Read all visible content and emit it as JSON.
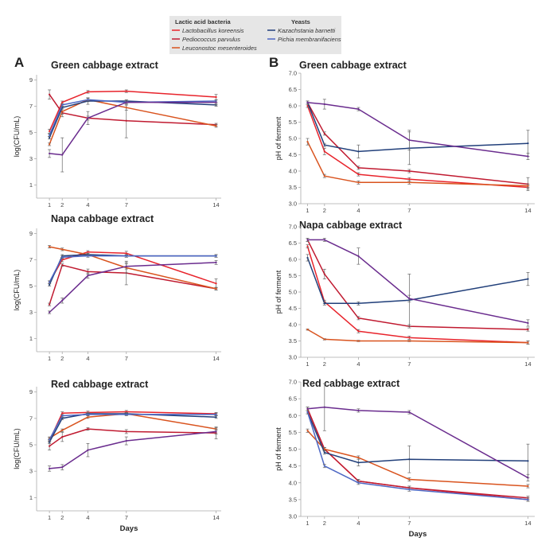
{
  "colors": {
    "L_koreensis": "#e8232b",
    "P_parvulus": "#c01a30",
    "L_mesenteroides": "#d9531e",
    "K_barnetti": "#213f7a",
    "P_membranifaciens": "#4d67c4",
    "purple": "#6a2c8e",
    "legend_bg": "#e6e6e6",
    "axis": "#aaaaaa",
    "error": "#666666"
  },
  "legend": {
    "lab_heading": "Lactic acid bacteria",
    "yeast_heading": "Yeasts",
    "lab_items": [
      {
        "label": "Lactobacillus koreensis",
        "color_key": "L_koreensis"
      },
      {
        "label": "Pediococcus parvulus",
        "color_key": "P_parvulus"
      },
      {
        "label": "Leuconostoc mesenteroides",
        "color_key": "L_mesenteroides"
      }
    ],
    "yeast_items": [
      {
        "label": "Kazachstania barnetti",
        "color_key": "K_barnetti"
      },
      {
        "label": "Pichia membranifaciens",
        "color_key": "P_membranifaciens"
      }
    ]
  },
  "panels": {
    "A": "A",
    "B": "B"
  },
  "chart_data": [
    {
      "id": "A1",
      "type": "line",
      "title": "Green cabbage extract",
      "xlabel": "",
      "ylabel": "log(CFU/mL)",
      "x": [
        1,
        2,
        4,
        7,
        14
      ],
      "xlim": [
        0,
        14.4
      ],
      "ylim": [
        0,
        9.4
      ],
      "yticks": [
        1,
        3,
        5,
        7,
        9
      ],
      "xticks": [
        1,
        2,
        4,
        7,
        14
      ],
      "series": [
        {
          "color_key": "L_koreensis",
          "values": [
            5.1,
            7.3,
            8.1,
            8.15,
            7.7
          ],
          "err": [
            0.15,
            0.1,
            0.1,
            0.1,
            0.2
          ]
        },
        {
          "color_key": "P_parvulus",
          "values": [
            7.9,
            6.5,
            6.1,
            5.9,
            5.6
          ],
          "err": [
            0.35,
            0.3,
            0.15,
            1.3,
            0.1
          ]
        },
        {
          "color_key": "L_mesenteroides",
          "values": [
            4.1,
            6.6,
            7.5,
            6.9,
            5.5
          ],
          "err": [
            0.1,
            0.2,
            0.15,
            0.2,
            0.1
          ]
        },
        {
          "color_key": "K_barnetti",
          "values": [
            4.6,
            6.9,
            7.4,
            7.4,
            7.1
          ],
          "err": [
            0.1,
            0.1,
            0.25,
            0.1,
            0.1
          ]
        },
        {
          "color_key": "P_membranifaciens",
          "values": [
            4.8,
            7.1,
            7.5,
            7.3,
            7.4
          ],
          "err": [
            0.1,
            0.1,
            0.1,
            0.1,
            0.1
          ]
        },
        {
          "color_key": "purple",
          "values": [
            3.4,
            3.3,
            6.1,
            7.3,
            7.3
          ],
          "err": [
            0.3,
            1.3,
            0.5,
            0.2,
            0.2
          ]
        }
      ]
    },
    {
      "id": "A2",
      "type": "line",
      "title": "Napa cabbage extract",
      "xlabel": "",
      "ylabel": "log(CFU/mL)",
      "x": [
        1,
        2,
        4,
        7,
        14
      ],
      "xlim": [
        0,
        14.4
      ],
      "ylim": [
        0,
        9.4
      ],
      "yticks": [
        1,
        3,
        5,
        7,
        9
      ],
      "xticks": [
        1,
        2,
        4,
        7,
        14
      ],
      "series": [
        {
          "color_key": "L_koreensis",
          "values": [
            5.3,
            7.0,
            7.6,
            7.5,
            5.2
          ],
          "err": [
            0.1,
            0.15,
            0.1,
            0.15,
            0.35
          ]
        },
        {
          "color_key": "P_parvulus",
          "values": [
            3.6,
            6.6,
            6.1,
            6.0,
            4.8
          ],
          "err": [
            0.1,
            0.1,
            0.2,
            0.9,
            0.1
          ]
        },
        {
          "color_key": "L_mesenteroides",
          "values": [
            8.0,
            7.8,
            7.4,
            6.4,
            4.8
          ],
          "err": [
            0.1,
            0.1,
            0.1,
            0.4,
            0.1
          ]
        },
        {
          "color_key": "K_barnetti",
          "values": [
            5.1,
            7.3,
            7.4,
            7.3,
            7.3
          ],
          "err": [
            0.1,
            0.1,
            0.1,
            0.1,
            0.1
          ]
        },
        {
          "color_key": "P_membranifaciens",
          "values": [
            5.3,
            7.2,
            7.3,
            7.3,
            7.3
          ],
          "err": [
            0.1,
            0.1,
            0.1,
            0.1,
            0.1
          ]
        },
        {
          "color_key": "purple",
          "values": [
            3.0,
            3.9,
            5.8,
            6.5,
            6.8
          ],
          "err": [
            0.1,
            0.2,
            0.2,
            0.2,
            0.15
          ]
        }
      ]
    },
    {
      "id": "A3",
      "type": "line",
      "title": "Red cabbage extract",
      "xlabel": "Days",
      "ylabel": "log(CFU/mL)",
      "x": [
        1,
        2,
        4,
        7,
        14
      ],
      "xlim": [
        0,
        14.4
      ],
      "ylim": [
        0,
        9.4
      ],
      "yticks": [
        1,
        3,
        5,
        7,
        9
      ],
      "xticks": [
        1,
        2,
        4,
        7,
        14
      ],
      "series": [
        {
          "color_key": "L_koreensis",
          "values": [
            5.3,
            7.4,
            7.45,
            7.5,
            7.35
          ],
          "err": [
            0.1,
            0.1,
            0.1,
            0.1,
            0.1
          ]
        },
        {
          "color_key": "P_parvulus",
          "values": [
            4.9,
            5.6,
            6.2,
            6.0,
            5.9
          ],
          "err": [
            0.3,
            0.35,
            0.1,
            0.15,
            0.45
          ]
        },
        {
          "color_key": "L_mesenteroides",
          "values": [
            5.5,
            6.1,
            7.1,
            7.35,
            6.2
          ],
          "err": [
            0.1,
            0.1,
            0.1,
            0.1,
            0.1
          ]
        },
        {
          "color_key": "K_barnetti",
          "values": [
            5.2,
            7.0,
            7.35,
            7.35,
            7.1
          ],
          "err": [
            0.1,
            0.1,
            0.1,
            0.1,
            0.1
          ]
        },
        {
          "color_key": "P_membranifaciens",
          "values": [
            5.4,
            7.2,
            7.3,
            7.3,
            7.3
          ],
          "err": [
            0.1,
            0.1,
            0.1,
            0.1,
            0.1
          ]
        },
        {
          "color_key": "purple",
          "values": [
            3.2,
            3.3,
            4.6,
            5.3,
            6.0
          ],
          "err": [
            0.2,
            0.2,
            0.5,
            0.3,
            0.2
          ]
        }
      ]
    },
    {
      "id": "B1",
      "type": "line",
      "title": "Green cabbage extract",
      "xlabel": "",
      "ylabel": "pH of ferment",
      "x": [
        1,
        2,
        4,
        7,
        14
      ],
      "xlim": [
        0.6,
        14.4
      ],
      "ylim": [
        3.0,
        7.0
      ],
      "yticks": [
        "3.0",
        "3.5",
        "4.0",
        "4.5",
        "5.0",
        "5.5",
        "6.0",
        "6.5",
        "7.0"
      ],
      "xticks": [
        1,
        2,
        4,
        7,
        14
      ],
      "series": [
        {
          "color_key": "L_koreensis",
          "values": [
            6.0,
            4.6,
            3.9,
            3.75,
            3.5
          ],
          "err": [
            0.05,
            0.1,
            0.05,
            0.05,
            0.05
          ]
        },
        {
          "color_key": "P_parvulus",
          "values": [
            6.1,
            5.15,
            4.1,
            4.0,
            3.6
          ],
          "err": [
            0.05,
            0.05,
            0.05,
            0.05,
            0.2
          ]
        },
        {
          "color_key": "L_mesenteroides",
          "values": [
            4.9,
            3.85,
            3.65,
            3.65,
            3.55
          ],
          "err": [
            0.1,
            0.05,
            0.05,
            0.05,
            0.05
          ]
        },
        {
          "color_key": "K_barnetti",
          "values": [
            6.1,
            4.8,
            4.6,
            4.7,
            4.85
          ],
          "err": [
            0.05,
            0.05,
            0.2,
            0.5,
            0.4
          ]
        },
        {
          "color_key": "purple",
          "values": [
            6.1,
            6.05,
            5.9,
            4.95,
            4.45
          ],
          "err": [
            0.05,
            0.15,
            0.05,
            0.3,
            0.1
          ]
        }
      ]
    },
    {
      "id": "B2",
      "type": "line",
      "title": "Napa cabbage extract",
      "xlabel": "",
      "ylabel": "pH of ferment",
      "x": [
        1,
        2,
        4,
        7,
        14
      ],
      "xlim": [
        0.6,
        14.4
      ],
      "ylim": [
        3.0,
        7.0
      ],
      "yticks": [
        "3.0",
        "3.5",
        "4.0",
        "4.5",
        "5.0",
        "5.5",
        "6.0",
        "6.5",
        "7.0"
      ],
      "xticks": [
        1,
        2,
        4,
        7,
        14
      ],
      "series": [
        {
          "color_key": "L_koreensis",
          "values": [
            6.4,
            4.7,
            3.8,
            3.6,
            3.45
          ],
          "err": [
            0.05,
            0.05,
            0.05,
            0.05,
            0.05
          ]
        },
        {
          "color_key": "P_parvulus",
          "values": [
            6.6,
            5.55,
            4.2,
            3.95,
            3.85
          ],
          "err": [
            0.05,
            0.15,
            0.05,
            0.05,
            0.05
          ]
        },
        {
          "color_key": "L_mesenteroides",
          "values": [
            3.85,
            3.55,
            3.5,
            3.5,
            3.45
          ],
          "err": [
            0.02,
            0.02,
            0.02,
            0.02,
            0.05
          ]
        },
        {
          "color_key": "K_barnetti",
          "values": [
            6.05,
            4.65,
            4.65,
            4.75,
            5.4
          ],
          "err": [
            0.1,
            0.05,
            0.05,
            0.8,
            0.2
          ]
        },
        {
          "color_key": "purple",
          "values": [
            6.6,
            6.6,
            6.1,
            4.8,
            4.05
          ],
          "err": [
            0.05,
            0.05,
            0.25,
            0.1,
            0.1
          ]
        }
      ]
    },
    {
      "id": "B3",
      "type": "line",
      "title": "Red cabbage extract",
      "xlabel": "Days",
      "ylabel": "pH of ferment",
      "x": [
        1,
        2,
        4,
        7,
        14
      ],
      "xlim": [
        0.6,
        14.4
      ],
      "ylim": [
        3.0,
        7.0
      ],
      "yticks": [
        "3.0",
        "3.5",
        "4.0",
        "4.5",
        "5.0",
        "5.5",
        "6.0",
        "6.5",
        "7.0"
      ],
      "xticks": [
        1,
        2,
        4,
        7,
        14
      ],
      "series": [
        {
          "color_key": "L_koreensis",
          "values": [
            6.2,
            5.0,
            4.05,
            3.85,
            3.5
          ],
          "err": [
            0.05,
            0.05,
            0.05,
            0.05,
            0.05
          ]
        },
        {
          "color_key": "P_parvulus",
          "values": [
            6.2,
            5.0,
            4.05,
            3.85,
            3.55
          ],
          "err": [
            0.05,
            0.05,
            0.05,
            0.05,
            0.05
          ]
        },
        {
          "color_key": "L_mesenteroides",
          "values": [
            5.55,
            5.0,
            4.75,
            4.1,
            3.9
          ],
          "err": [
            0.05,
            0.05,
            0.05,
            0.05,
            0.05
          ]
        },
        {
          "color_key": "K_barnetti",
          "values": [
            6.1,
            4.9,
            4.6,
            4.7,
            4.65
          ],
          "err": [
            0.05,
            0.05,
            0.1,
            0.4,
            0.5
          ]
        },
        {
          "color_key": "P_membranifaciens",
          "values": [
            6.1,
            4.5,
            4.0,
            3.8,
            3.5
          ],
          "err": [
            0.05,
            0.05,
            0.05,
            0.05,
            0.05
          ]
        },
        {
          "color_key": "purple",
          "values": [
            6.2,
            6.25,
            6.15,
            6.1,
            4.15
          ],
          "err": [
            0.05,
            0.7,
            0.05,
            0.05,
            0.1
          ]
        }
      ]
    }
  ]
}
